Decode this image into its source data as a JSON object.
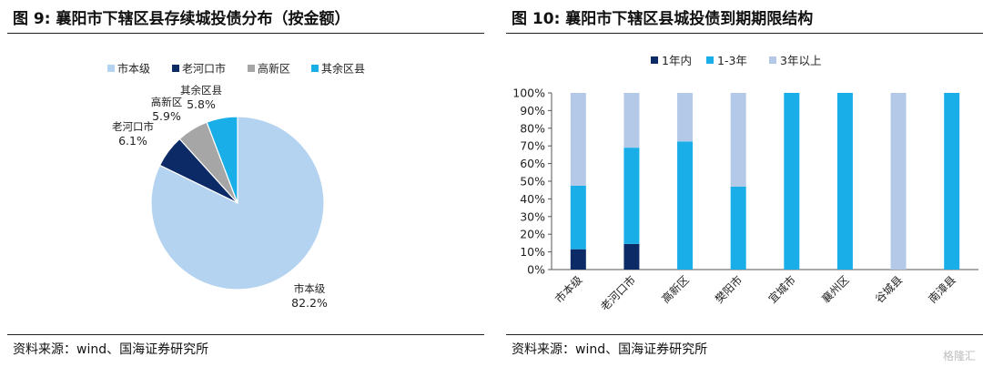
{
  "left": {
    "title": "图 9:  襄阳市下辖区县存续城投债分布（按金额）",
    "source": "资料来源：wind、国海证券研究所",
    "chart_data": {
      "type": "pie",
      "title": "",
      "legend_position": "top",
      "slices": [
        {
          "name": "市本级",
          "value": 82.2,
          "label": "82.2%",
          "color": "#b4d3f0"
        },
        {
          "name": "老河口市",
          "value": 6.1,
          "label": "6.1%",
          "color": "#0b2a66"
        },
        {
          "name": "高新区",
          "value": 5.9,
          "label": "5.9%",
          "color": "#a6a6a6"
        },
        {
          "name": "其余区县",
          "value": 5.8,
          "label": "5.8%",
          "color": "#1aaee8"
        }
      ]
    }
  },
  "right": {
    "title": "图 10:  襄阳市下辖区县城投债到期期限结构",
    "source": "资料来源：wind、国海证券研究所",
    "chart_data": {
      "type": "bar",
      "stacked": true,
      "title": "",
      "xlabel": "",
      "ylabel": "",
      "ylim": [
        0,
        100
      ],
      "y_unit": "%",
      "y_ticks": [
        0,
        10,
        20,
        30,
        40,
        50,
        60,
        70,
        80,
        90,
        100
      ],
      "legend_position": "top",
      "grid": false,
      "categories": [
        "市本级",
        "老河口市",
        "高新区",
        "樊阳市",
        "宜城市",
        "襄州区",
        "谷城县",
        "南漳县"
      ],
      "series": [
        {
          "name": "1年内",
          "color": "#0b2a66",
          "values": [
            11.5,
            14.5,
            0,
            0,
            0,
            0,
            0,
            0
          ]
        },
        {
          "name": "1-3年",
          "color": "#1aaee8",
          "values": [
            36.0,
            54.5,
            72.5,
            47.0,
            100,
            100,
            0,
            100
          ]
        },
        {
          "name": "3年以上",
          "color": "#b4c8e8",
          "values": [
            52.5,
            31.0,
            27.5,
            53.0,
            0,
            0,
            100,
            0
          ]
        }
      ]
    }
  },
  "watermark": "格隆汇"
}
